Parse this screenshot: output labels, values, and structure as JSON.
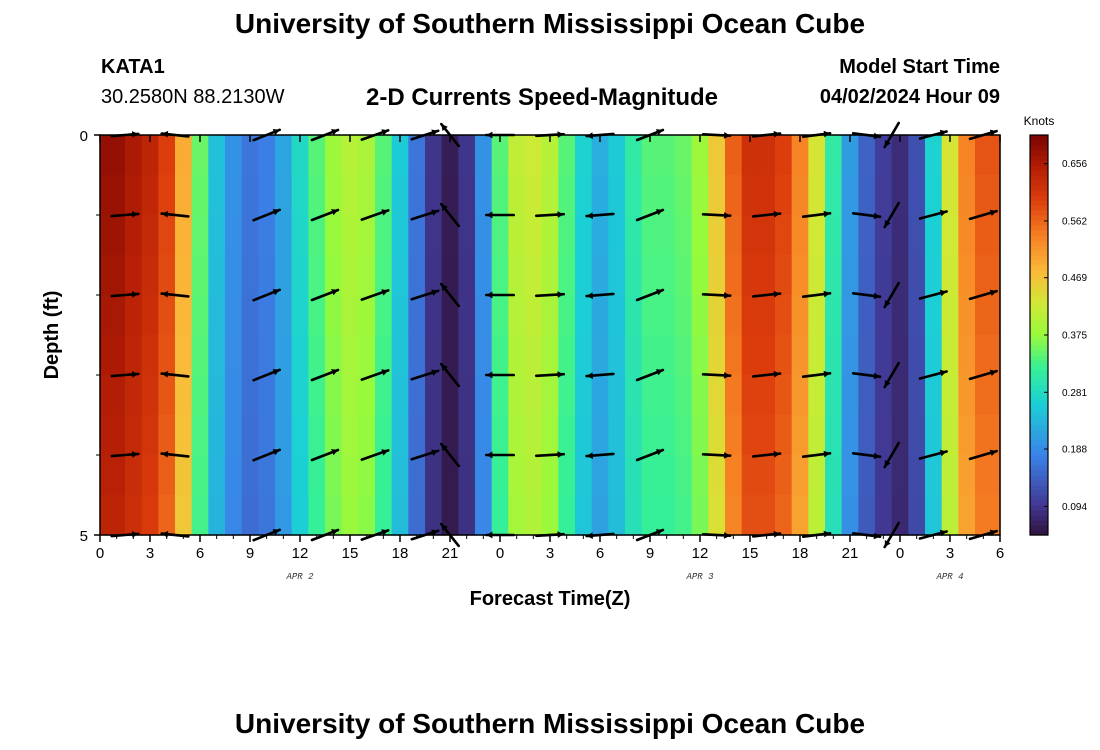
{
  "header": {
    "title": "University of Southern Mississippi Ocean Cube",
    "station_id": "KATA1",
    "location": "30.2580N  88.2130W",
    "plot_title": "2-D Currents Speed-Magnitude",
    "model_start_label": "Model Start Time",
    "model_start_value": "04/02/2024 Hour 09"
  },
  "footer": {
    "title": "University of Southern Mississippi Ocean Cube"
  },
  "chart_data": {
    "type": "heatmap",
    "title": "2-D Currents Speed-Magnitude",
    "xlabel": "Forecast Time(Z)",
    "ylabel": "Depth (ft)",
    "ylim": [
      0,
      5
    ],
    "y_ticks": [
      "0",
      "5"
    ],
    "y_tick_values": [
      0,
      5
    ],
    "x_tick_labels": [
      "0",
      "3",
      "6",
      "9",
      "12",
      "15",
      "18",
      "21",
      "0",
      "3",
      "6",
      "9",
      "12",
      "15",
      "18",
      "21",
      "0",
      "3",
      "6"
    ],
    "x_tick_hours": [
      0,
      3,
      6,
      9,
      12,
      15,
      18,
      21,
      24,
      27,
      30,
      33,
      36,
      39,
      42,
      45,
      48,
      51,
      54
    ],
    "xlim": [
      0,
      54
    ],
    "date_labels": [
      {
        "label": "APR 2",
        "hour": 12
      },
      {
        "label": "APR 3",
        "hour": 36
      },
      {
        "label": "APR 4",
        "hour": 51
      }
    ],
    "colorbar": {
      "label": "Knots",
      "ticks": [
        0.094,
        0.188,
        0.281,
        0.375,
        0.469,
        0.562,
        0.656
      ],
      "range": [
        0.047,
        0.703
      ]
    },
    "speed_profile": {
      "hours": [
        0,
        1,
        2,
        3,
        4,
        5,
        6,
        7,
        8,
        9,
        10,
        11,
        12,
        13,
        14,
        15,
        16,
        17,
        18,
        19,
        20,
        21,
        22,
        23,
        24,
        25,
        26,
        27,
        28,
        29,
        30,
        31,
        32,
        33,
        34,
        35,
        36,
        37,
        38,
        39,
        40,
        41,
        42,
        43,
        44,
        45,
        46,
        47,
        48,
        49,
        50,
        51,
        52,
        53,
        54
      ],
      "speed_knots": [
        0.66,
        0.66,
        0.64,
        0.62,
        0.58,
        0.48,
        0.34,
        0.24,
        0.19,
        0.16,
        0.17,
        0.21,
        0.27,
        0.33,
        0.37,
        0.39,
        0.38,
        0.33,
        0.25,
        0.16,
        0.09,
        0.06,
        0.09,
        0.19,
        0.33,
        0.4,
        0.41,
        0.39,
        0.33,
        0.26,
        0.22,
        0.25,
        0.3,
        0.33,
        0.33,
        0.34,
        0.37,
        0.45,
        0.55,
        0.6,
        0.6,
        0.58,
        0.52,
        0.42,
        0.3,
        0.2,
        0.14,
        0.1,
        0.08,
        0.12,
        0.26,
        0.42,
        0.52,
        0.56,
        0.56
      ]
    },
    "vector_columns": [
      {
        "hour": 1.5,
        "u": 0.95,
        "v": 0.08
      },
      {
        "hour": 4.5,
        "u": -0.95,
        "v": 0.1
      },
      {
        "hour": 10,
        "u": 0.93,
        "v": 0.37
      },
      {
        "hour": 13.5,
        "u": 0.93,
        "v": 0.36
      },
      {
        "hour": 16.5,
        "u": 0.94,
        "v": 0.33
      },
      {
        "hour": 19.5,
        "u": 0.94,
        "v": 0.3
      },
      {
        "hour": 21,
        "u": -0.62,
        "v": 0.78
      },
      {
        "hour": 24,
        "u": -0.98,
        "v": 0.0
      },
      {
        "hour": 27,
        "u": 0.98,
        "v": 0.06
      },
      {
        "hour": 30,
        "u": -0.96,
        "v": -0.08
      },
      {
        "hour": 33,
        "u": 0.92,
        "v": 0.36
      },
      {
        "hour": 37,
        "u": 0.97,
        "v": -0.05
      },
      {
        "hour": 40,
        "u": 0.96,
        "v": 0.1
      },
      {
        "hour": 43,
        "u": 0.96,
        "v": 0.12
      },
      {
        "hour": 46,
        "u": 0.96,
        "v": -0.12
      },
      {
        "hour": 47.5,
        "u": -0.5,
        "v": -0.86
      },
      {
        "hour": 50,
        "u": 0.95,
        "v": 0.25
      },
      {
        "hour": 53,
        "u": 0.95,
        "v": 0.28
      }
    ],
    "vector_depths_ft": [
      0,
      1,
      2,
      3,
      4,
      5
    ]
  }
}
